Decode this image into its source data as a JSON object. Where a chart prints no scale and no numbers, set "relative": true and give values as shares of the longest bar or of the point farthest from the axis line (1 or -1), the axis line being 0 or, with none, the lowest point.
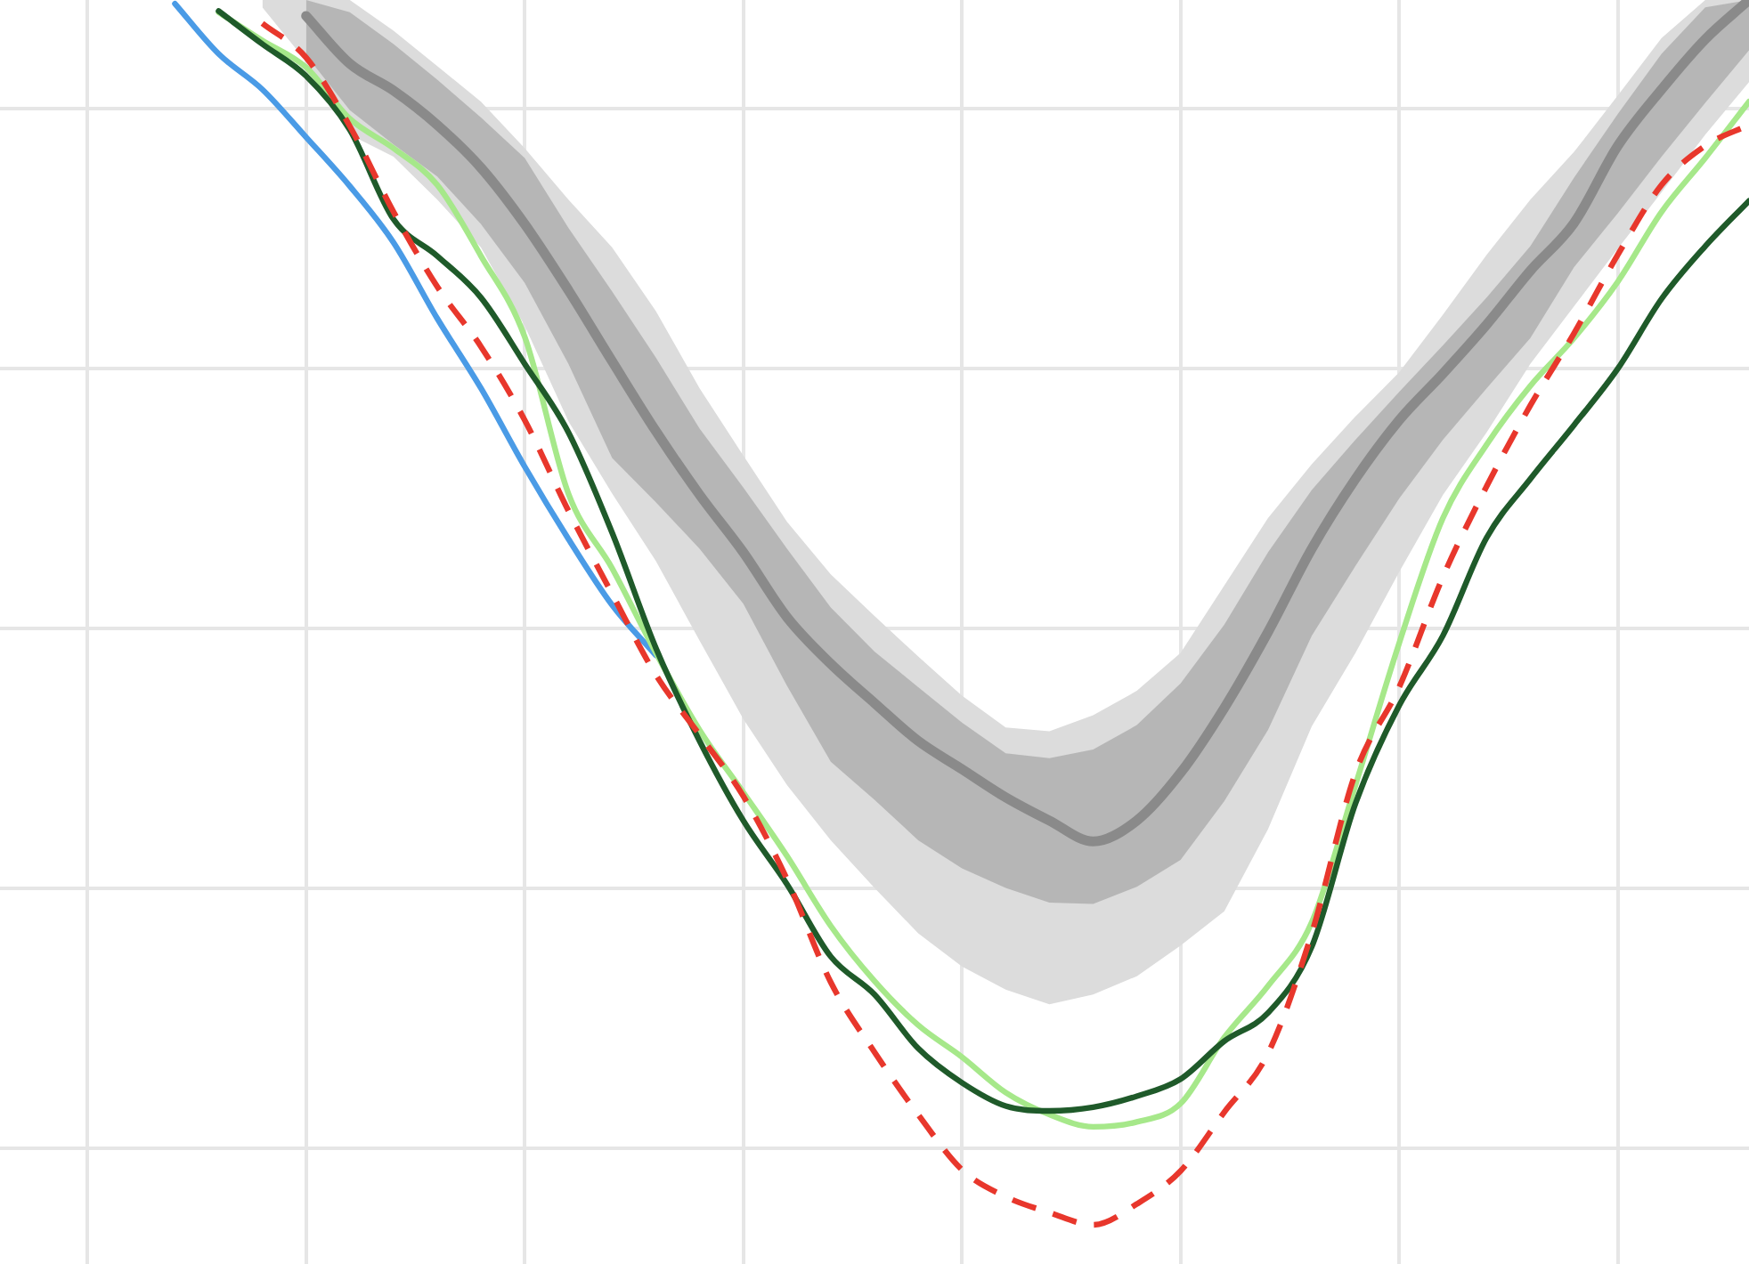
{
  "chart_data": {
    "type": "line",
    "relative": true,
    "grid": true,
    "legend": false,
    "marker": "none",
    "categories": [
      null,
      null,
      null,
      null,
      null,
      null,
      null,
      null,
      null,
      null,
      null,
      null,
      null,
      null,
      null,
      null,
      null,
      null,
      null,
      null,
      null,
      null,
      null,
      null,
      null,
      null,
      null,
      null,
      null,
      null,
      null,
      null,
      null,
      null,
      null,
      null,
      null,
      null,
      null,
      null,
      null
    ],
    "series": [
      {
        "color": "#dcdcdc",
        "values": [
          null,
          null,
          null,
          null,
          null,
          null,
          null,
          null,
          null,
          null,
          null,
          null,
          null,
          null,
          null,
          null,
          null,
          null,
          null,
          null,
          null,
          null,
          null,
          null,
          null,
          null,
          null,
          null,
          null,
          null,
          null,
          null,
          null,
          null,
          null,
          null,
          null,
          null,
          null,
          null,
          null
        ],
        "lower": [
          null,
          null,
          null,
          null,
          null,
          null,
          0.994,
          0.95,
          0.89,
          0.872,
          0.837,
          0.798,
          0.734,
          0.656,
          0.597,
          0.542,
          0.477,
          0.413,
          0.359,
          0.314,
          0.275,
          0.238,
          0.211,
          0.192,
          0.18,
          0.188,
          0.203,
          0.228,
          0.256,
          0.323,
          0.407,
          0.467,
          0.533,
          0.596,
          0.647,
          0.703,
          0.75,
          0.797,
          0.843,
          0.89,
          0.933
        ],
        "upper": [
          null,
          null,
          null,
          null,
          null,
          null,
          1,
          1,
          1,
          0.975,
          0.946,
          0.917,
          0.879,
          0.837,
          0.798,
          0.746,
          0.683,
          0.628,
          0.574,
          0.531,
          0.497,
          0.464,
          0.432,
          0.406,
          0.403,
          0.416,
          0.436,
          0.467,
          0.522,
          0.577,
          0.621,
          0.66,
          0.696,
          0.743,
          0.792,
          0.837,
          0.876,
          0.922,
          0.969,
          1,
          1
        ]
      },
      {
        "color": "#8a8a8a",
        "values": [
          null,
          null,
          null,
          null,
          null,
          null,
          null,
          0.987,
          0.948,
          0.926,
          0.898,
          0.863,
          0.817,
          0.763,
          0.705,
          0.648,
          0.596,
          0.549,
          0.496,
          0.458,
          0.426,
          0.395,
          0.372,
          0.349,
          0.33,
          0.313,
          0.33,
          0.369,
          0.422,
          0.484,
          0.552,
          0.609,
          0.657,
          0.695,
          0.735,
          0.779,
          0.818,
          0.881,
          0.927,
          0.968,
          1
        ],
        "lower": [
          null,
          null,
          null,
          null,
          null,
          null,
          null,
          0.955,
          0.91,
          0.882,
          0.856,
          0.817,
          0.769,
          0.703,
          0.626,
          0.59,
          0.552,
          0.507,
          0.44,
          0.378,
          0.347,
          0.314,
          0.291,
          0.275,
          0.263,
          0.262,
          0.276,
          0.298,
          0.346,
          0.404,
          0.481,
          0.538,
          0.593,
          0.641,
          0.683,
          0.724,
          0.782,
          0.826,
          0.872,
          0.916,
          0.959
        ],
        "upper": [
          null,
          null,
          null,
          null,
          null,
          null,
          null,
          1,
          0.99,
          0.964,
          0.935,
          0.904,
          0.871,
          0.814,
          0.762,
          0.708,
          0.65,
          0.602,
          0.552,
          0.504,
          0.468,
          0.439,
          0.41,
          0.385,
          0.381,
          0.388,
          0.408,
          0.442,
          0.49,
          0.549,
          0.6,
          0.641,
          0.68,
          0.718,
          0.757,
          0.799,
          0.855,
          0.907,
          0.956,
          0.994,
          1
        ]
      },
      {
        "color": "#4a9be6",
        "values": [
          null,
          null,
          null,
          null,
          0.997,
          0.956,
          0.927,
          0.888,
          0.848,
          0.802,
          0.74,
          0.683,
          0.619,
          0.56,
          0.506,
          0.465,
          null,
          null,
          null,
          null,
          null,
          null,
          null,
          null,
          null,
          null,
          null,
          null,
          null,
          null,
          null,
          null,
          null,
          null,
          null,
          null,
          null,
          null,
          null,
          null,
          null
        ]
      },
      {
        "color": "#a6e88a",
        "values": [
          null,
          null,
          null,
          null,
          null,
          0.99,
          0.967,
          0.945,
          0.903,
          0.879,
          0.849,
          0.791,
          0.725,
          0.597,
          0.536,
          0.467,
          0.404,
          0.353,
          0.301,
          0.244,
          0.199,
          0.163,
          0.137,
          0.108,
          0.09,
          0.08,
          0.084,
          0.099,
          0.153,
          0.195,
          0.247,
          0.359,
          0.475,
          0.577,
          0.637,
          0.685,
          0.724,
          0.77,
          0.827,
          0.871,
          0.917
        ]
      },
      {
        "color": "#1f5a2a",
        "values": [
          null,
          null,
          null,
          null,
          null,
          0.991,
          0.964,
          0.938,
          0.894,
          0.821,
          0.791,
          0.757,
          0.703,
          0.647,
          0.565,
          0.471,
          0.395,
          0.33,
          0.278,
          0.219,
          0.188,
          0.144,
          0.116,
          0.097,
          0.093,
          0.096,
          0.105,
          0.119,
          0.15,
          0.173,
          0.227,
          0.344,
          0.424,
          0.481,
          0.561,
          0.609,
          0.653,
          0.699,
          0.756,
          0.799,
          0.836
        ]
      },
      {
        "color": "#e8372c",
        "line_style": "dashed",
        "values": [
          null,
          null,
          null,
          null,
          null,
          null,
          0.981,
          0.953,
          0.897,
          0.827,
          0.766,
          0.717,
          0.657,
          0.583,
          0.515,
          0.449,
          0.4,
          0.35,
          0.282,
          0.198,
          0.141,
          0.09,
          0.045,
          0.023,
          0.01,
          0,
          0.017,
          0.044,
          0.092,
          0.14,
          0.238,
          0.369,
          0.439,
          0.529,
          0.603,
          0.669,
          0.728,
          0.792,
          0.849,
          0.881,
          0.898
        ]
      }
    ]
  }
}
